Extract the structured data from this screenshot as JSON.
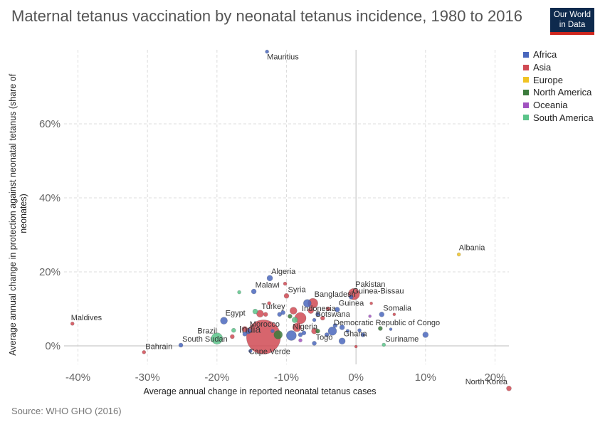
{
  "title": "Maternal tetanus vaccination by neonatal tetanus incidence, 1980 to 2016",
  "logo": {
    "line1": "Our World",
    "line2": "in Data"
  },
  "source": "Source: WHO GHO (2016)",
  "legend": [
    {
      "name": "Africa",
      "color": "#4a67bd"
    },
    {
      "name": "Asia",
      "color": "#d04a54"
    },
    {
      "name": "Europe",
      "color": "#f0c324"
    },
    {
      "name": "North America",
      "color": "#3b7b3c"
    },
    {
      "name": "Oceania",
      "color": "#a152c0"
    },
    {
      "name": "South America",
      "color": "#5bc48a"
    }
  ],
  "chart_data": {
    "type": "scatter",
    "title": "Maternal tetanus vaccination by neonatal tetanus incidence, 1980 to 2016",
    "xlabel": "Average annual change in reported neonatal tetanus cases",
    "ylabel": "Average annual change in protection against neonatal tetanus (share of neonates)",
    "xlim": [
      -0.42,
      0.22
    ],
    "ylim": [
      -0.05,
      0.8
    ],
    "x_ticks": [
      -0.4,
      -0.3,
      -0.2,
      -0.1,
      0,
      0.1,
      0.2
    ],
    "x_tick_labels": [
      "-40%",
      "-30%",
      "-20%",
      "-10%",
      "0%",
      "10%",
      "20%"
    ],
    "y_ticks": [
      0,
      0.2,
      0.4,
      0.6
    ],
    "y_tick_labels": [
      "0%",
      "20%",
      "40%",
      "60%"
    ],
    "grid": true,
    "legend_position": "right",
    "points": [
      {
        "label": "Mauritius",
        "x": -0.128,
        "y": 0.795,
        "region": "Africa",
        "size": 2.5
      },
      {
        "label": "Albania",
        "x": 0.148,
        "y": 0.247,
        "region": "Europe",
        "size": 2.5
      },
      {
        "label": "North Korea",
        "x": 0.22,
        "y": -0.115,
        "region": "Asia",
        "size": 3.5
      },
      {
        "label": "Maldives",
        "x": -0.408,
        "y": 0.06,
        "region": "Asia",
        "size": 2.5
      },
      {
        "label": "Bahrain",
        "x": -0.305,
        "y": -0.017,
        "region": "Asia",
        "size": 2.5
      },
      {
        "label": "South Sudan",
        "x": -0.252,
        "y": 0.002,
        "region": "Africa",
        "size": 3
      },
      {
        "label": "Algeria",
        "x": -0.124,
        "y": 0.183,
        "region": "Africa",
        "size": 4
      },
      {
        "label": "Malawi",
        "x": -0.147,
        "y": 0.147,
        "region": "Africa",
        "size": 3.5
      },
      {
        "label": "Syria",
        "x": -0.1,
        "y": 0.135,
        "region": "Asia",
        "size": 3.5
      },
      {
        "label": "Pakistan",
        "x": -0.003,
        "y": 0.14,
        "region": "Asia",
        "size": 8
      },
      {
        "label": "Guinea-Bissau",
        "x": -0.007,
        "y": 0.132,
        "region": "Africa",
        "size": 3
      },
      {
        "label": "Bangladesh",
        "x": -0.062,
        "y": 0.115,
        "region": "Asia",
        "size": 7
      },
      {
        "label": "Guinea",
        "x": -0.027,
        "y": 0.098,
        "region": "Africa",
        "size": 3.5
      },
      {
        "label": "Somalia",
        "x": 0.037,
        "y": 0.085,
        "region": "Africa",
        "size": 3.5
      },
      {
        "label": "Turkey",
        "x": -0.138,
        "y": 0.087,
        "region": "Asia",
        "size": 5
      },
      {
        "label": "Indonesia",
        "x": -0.08,
        "y": 0.075,
        "region": "Asia",
        "size": 8
      },
      {
        "label": "Egypt",
        "x": -0.19,
        "y": 0.068,
        "region": "Africa",
        "size": 5
      },
      {
        "label": "Botswana",
        "x": -0.06,
        "y": 0.07,
        "region": "Africa",
        "size": 2.5
      },
      {
        "label": "Morocco",
        "x": -0.155,
        "y": 0.04,
        "region": "Africa",
        "size": 4
      },
      {
        "label": "Brazil",
        "x": -0.2,
        "y": 0.02,
        "region": "South America",
        "size": 8
      },
      {
        "label": "India",
        "x": -0.133,
        "y": 0.024,
        "region": "Asia",
        "size": 24
      },
      {
        "label": "Nigeria",
        "x": -0.093,
        "y": 0.028,
        "region": "Africa",
        "size": 7
      },
      {
        "label": "Democratic Republic of Congo",
        "x": -0.034,
        "y": 0.04,
        "region": "Africa",
        "size": 6
      },
      {
        "label": "Togo",
        "x": -0.06,
        "y": 0.007,
        "region": "Africa",
        "size": 3
      },
      {
        "label": "Ghana",
        "x": -0.02,
        "y": 0.013,
        "region": "Africa",
        "size": 4.5
      },
      {
        "label": "Suriname",
        "x": 0.04,
        "y": 0.003,
        "region": "South America",
        "size": 2.5
      },
      {
        "label": "Cape Verde",
        "x": -0.152,
        "y": -0.014,
        "region": "Africa",
        "size": 2.5
      },
      {
        "label": "",
        "x": 0.1,
        "y": 0.03,
        "region": "Africa",
        "size": 4
      },
      {
        "label": "",
        "x": -0.176,
        "y": 0.042,
        "region": "South America",
        "size": 3
      },
      {
        "label": "",
        "x": -0.178,
        "y": 0.025,
        "region": "Asia",
        "size": 3
      },
      {
        "label": "",
        "x": -0.16,
        "y": 0.045,
        "region": "Asia",
        "size": 4
      },
      {
        "label": "",
        "x": -0.168,
        "y": 0.145,
        "region": "South America",
        "size": 2.5
      },
      {
        "label": "",
        "x": -0.125,
        "y": 0.115,
        "region": "Asia",
        "size": 2.5
      },
      {
        "label": "",
        "x": -0.102,
        "y": 0.168,
        "region": "Asia",
        "size": 2.5
      },
      {
        "label": "",
        "x": -0.145,
        "y": 0.093,
        "region": "South America",
        "size": 3.5
      },
      {
        "label": "",
        "x": -0.13,
        "y": 0.085,
        "region": "Asia",
        "size": 3
      },
      {
        "label": "",
        "x": -0.11,
        "y": 0.085,
        "region": "Africa",
        "size": 3
      },
      {
        "label": "",
        "x": -0.105,
        "y": 0.09,
        "region": "Africa",
        "size": 3
      },
      {
        "label": "",
        "x": -0.09,
        "y": 0.095,
        "region": "Asia",
        "size": 5
      },
      {
        "label": "",
        "x": -0.07,
        "y": 0.115,
        "region": "Africa",
        "size": 5.5
      },
      {
        "label": "",
        "x": -0.085,
        "y": 0.05,
        "region": "Asia",
        "size": 6
      },
      {
        "label": "",
        "x": -0.088,
        "y": 0.07,
        "region": "South America",
        "size": 4
      },
      {
        "label": "",
        "x": -0.095,
        "y": 0.08,
        "region": "North America",
        "size": 3
      },
      {
        "label": "",
        "x": -0.065,
        "y": 0.095,
        "region": "Asia",
        "size": 4
      },
      {
        "label": "",
        "x": -0.055,
        "y": 0.085,
        "region": "Africa",
        "size": 3
      },
      {
        "label": "",
        "x": -0.048,
        "y": 0.075,
        "region": "Asia",
        "size": 3
      },
      {
        "label": "",
        "x": -0.04,
        "y": 0.1,
        "region": "Asia",
        "size": 3
      },
      {
        "label": "",
        "x": -0.06,
        "y": 0.04,
        "region": "Asia",
        "size": 4
      },
      {
        "label": "",
        "x": -0.055,
        "y": 0.04,
        "region": "North America",
        "size": 3
      },
      {
        "label": "",
        "x": -0.075,
        "y": 0.035,
        "region": "Africa",
        "size": 3
      },
      {
        "label": "",
        "x": -0.08,
        "y": 0.015,
        "region": "Oceania",
        "size": 2.5
      },
      {
        "label": "",
        "x": -0.042,
        "y": 0.03,
        "region": "Africa",
        "size": 3
      },
      {
        "label": "",
        "x": -0.02,
        "y": 0.05,
        "region": "Africa",
        "size": 3.5
      },
      {
        "label": "",
        "x": 0.01,
        "y": 0.03,
        "region": "Africa",
        "size": 3
      },
      {
        "label": "",
        "x": 0.02,
        "y": 0.08,
        "region": "Oceania",
        "size": 2
      },
      {
        "label": "",
        "x": 0.055,
        "y": 0.085,
        "region": "Asia",
        "size": 2
      },
      {
        "label": "",
        "x": 0.022,
        "y": 0.115,
        "region": "Asia",
        "size": 2
      },
      {
        "label": "",
        "x": 0.035,
        "y": 0.047,
        "region": "North America",
        "size": 3
      },
      {
        "label": "",
        "x": 0.05,
        "y": 0.045,
        "region": "Africa",
        "size": 2
      },
      {
        "label": "",
        "x": 0,
        "y": -0.002,
        "region": "Asia",
        "size": 2
      },
      {
        "label": "",
        "x": -0.112,
        "y": 0.03,
        "region": "North America",
        "size": 6
      },
      {
        "label": "",
        "x": -0.12,
        "y": 0.04,
        "region": "Africa",
        "size": 2.5
      },
      {
        "label": "",
        "x": -0.08,
        "y": 0.03,
        "region": "Africa",
        "size": 3
      },
      {
        "label": "",
        "x": -0.03,
        "y": 0.055,
        "region": "Africa",
        "size": 3
      },
      {
        "label": "",
        "x": -0.012,
        "y": 0.04,
        "region": "Africa",
        "size": 2.5
      },
      {
        "label": "",
        "x": 0.005,
        "y": 0.042,
        "region": "Africa",
        "size": 2.5
      },
      {
        "label": "",
        "x": -0.16,
        "y": 0.032,
        "region": "Africa",
        "size": 3
      }
    ]
  }
}
